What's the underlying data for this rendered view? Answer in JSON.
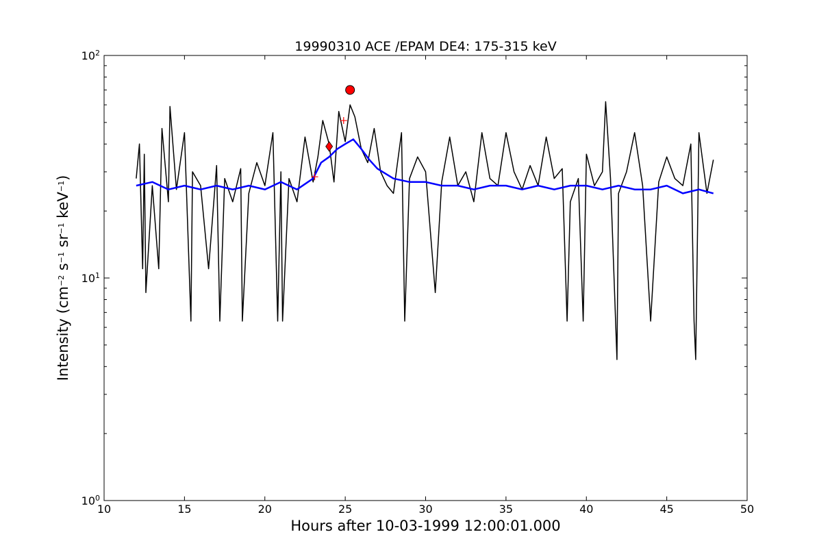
{
  "chart_data": {
    "type": "line",
    "title": "19990310 ACE /EPAM DE4: 175-315 keV",
    "xlabel": "Hours after 10-03-1999 12:00:01.000",
    "ylabel": {
      "prefix": "Intensity (cm",
      "sup1": "−2",
      "mid1": " s",
      "sup2": "−1",
      "mid2": " sr",
      "sup3": "−1",
      "mid3": " keV",
      "sup4": "−1",
      "suffix": ")"
    },
    "x_range": [
      10,
      50
    ],
    "y_range": [
      1,
      100
    ],
    "y_scale": "log",
    "x_ticks": [
      10,
      15,
      20,
      25,
      30,
      35,
      40,
      45,
      50
    ],
    "y_ticks": [
      {
        "value": 1,
        "base": "10",
        "exp": "0"
      },
      {
        "value": 10,
        "base": "10",
        "exp": "1"
      },
      {
        "value": 100,
        "base": "10",
        "exp": "2"
      }
    ],
    "grid": false,
    "series": [
      {
        "color": "#000000",
        "description": "raw intensity (noisy)",
        "x": [
          12.0,
          12.2,
          12.4,
          12.5,
          12.6,
          13.0,
          13.4,
          13.6,
          14.0,
          14.1,
          14.5,
          15.0,
          15.4,
          15.5,
          16.0,
          16.5,
          17.0,
          17.2,
          17.5,
          18.0,
          18.5,
          18.6,
          19.0,
          19.5,
          20.0,
          20.5,
          20.8,
          21.0,
          21.1,
          21.5,
          22.0,
          22.5,
          23.0,
          23.3,
          23.6,
          24.0,
          24.3,
          24.6,
          25.0,
          25.3,
          25.6,
          26.0,
          26.4,
          26.8,
          27.2,
          27.6,
          28.0,
          28.5,
          28.7,
          29.0,
          29.5,
          30.0,
          30.6,
          31.0,
          31.5,
          32.0,
          32.5,
          33.0,
          33.5,
          34.0,
          34.5,
          35.0,
          35.5,
          36.0,
          36.5,
          37.0,
          37.5,
          38.0,
          38.5,
          38.8,
          39.0,
          39.5,
          39.8,
          40.0,
          40.5,
          41.0,
          41.2,
          41.5,
          41.9,
          42.0,
          42.5,
          43.0,
          43.5,
          44.0,
          44.5,
          45.0,
          45.5,
          46.0,
          46.5,
          46.7,
          46.8,
          47.0,
          47.5,
          47.9
        ],
        "y": [
          28,
          40,
          11,
          36,
          8.6,
          26,
          11,
          47,
          22,
          59,
          25,
          45,
          6.4,
          30,
          26,
          11,
          32,
          6.4,
          28,
          22,
          31,
          6.4,
          24,
          33,
          26,
          45,
          6.4,
          30,
          6.4,
          28,
          22,
          43,
          27,
          35,
          51,
          40,
          27,
          56,
          41,
          60,
          53,
          38,
          33,
          47,
          30,
          26,
          24,
          45,
          6.4,
          28,
          35,
          30,
          8.6,
          27,
          43,
          26,
          30,
          22,
          45,
          28,
          26,
          45,
          30,
          25,
          32,
          26,
          43,
          28,
          31,
          6.4,
          22,
          28,
          6.4,
          36,
          26,
          30,
          62,
          28,
          4.3,
          24,
          30,
          45,
          26,
          6.4,
          27,
          35,
          28,
          26,
          40,
          6.4,
          4.3,
          45,
          24,
          34
        ]
      },
      {
        "color": "#0000ff",
        "description": "smoothed intensity",
        "x": [
          12.0,
          13.0,
          14.0,
          15.0,
          16.0,
          17.0,
          18.0,
          19.0,
          20.0,
          21.0,
          22.0,
          23.0,
          23.5,
          24.0,
          24.5,
          25.0,
          25.5,
          26.0,
          26.5,
          27.0,
          28.0,
          29.0,
          30.0,
          31.0,
          32.0,
          33.0,
          34.0,
          35.0,
          36.0,
          37.0,
          38.0,
          39.0,
          40.0,
          41.0,
          42.0,
          43.0,
          44.0,
          45.0,
          46.0,
          47.0,
          47.9
        ],
        "y": [
          26,
          27,
          25,
          26,
          25,
          26,
          25,
          26,
          25,
          27,
          25,
          28,
          33,
          35,
          38,
          40,
          42,
          38,
          34,
          31,
          28,
          27,
          27,
          26,
          26,
          25,
          26,
          26,
          25,
          26,
          25,
          26,
          26,
          25,
          26,
          25,
          25,
          26,
          24,
          25,
          24
        ]
      }
    ],
    "markers": [
      {
        "shape": "circle",
        "color": "#ff0000",
        "x": 25.3,
        "y": 70
      },
      {
        "shape": "diamond",
        "color": "#ff0000",
        "x": 24.0,
        "y": 39
      },
      {
        "shape": "plus",
        "color": "#ff0000",
        "x": 24.9,
        "y": 51
      },
      {
        "shape": "plus",
        "color": "#ff0000",
        "x": 23.1,
        "y": 28.5
      }
    ]
  }
}
